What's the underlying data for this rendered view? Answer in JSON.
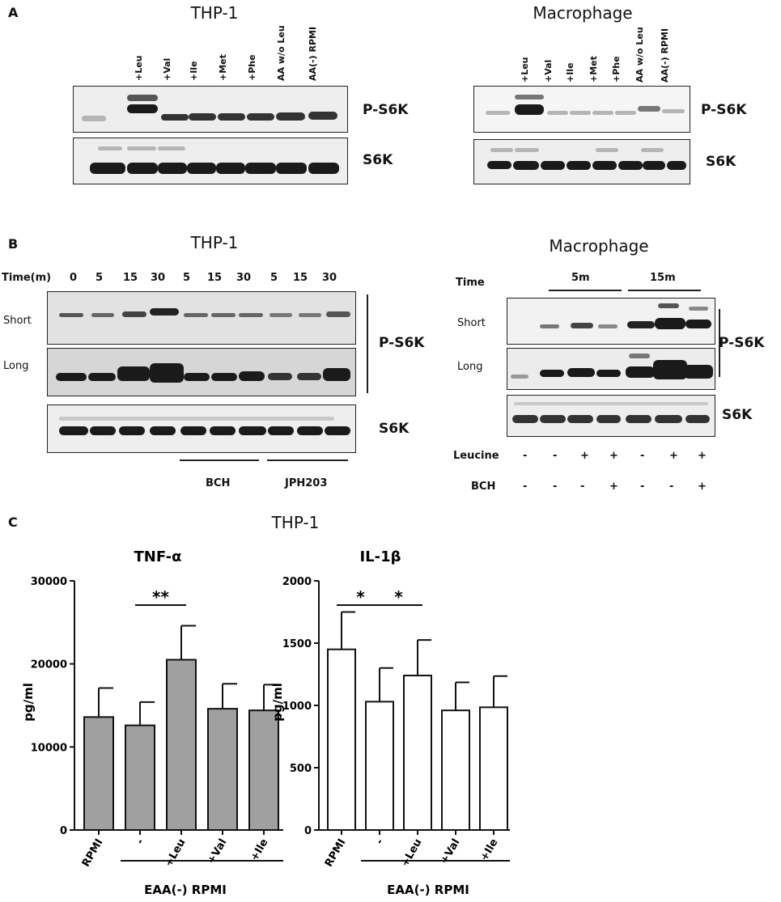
{
  "panelA": {
    "letter": "A",
    "left": {
      "title": "THP-1",
      "lanes": [
        "+Leu",
        "+Val",
        "+Ile",
        "+Met",
        "+Phe",
        "AA w/o Leu",
        "AA(-) RPMI"
      ],
      "blots": [
        "P-S6K",
        "S6K"
      ]
    },
    "right": {
      "title": "Macrophage",
      "lanes": [
        "+Leu",
        "+Val",
        "+Ile",
        "+Met",
        "+Phe",
        "AA w/o Leu",
        "AA(-) RPMI"
      ],
      "blots": [
        "P-S6K",
        "S6K"
      ]
    }
  },
  "panelB": {
    "letter": "B",
    "left": {
      "title": "THP-1",
      "time_label": "Time(m)",
      "times": [
        "0",
        "5",
        "15",
        "30",
        "5",
        "15",
        "30",
        "5",
        "15",
        "30"
      ],
      "row_labels": [
        "Short",
        "Long"
      ],
      "blots": [
        "P-S6K",
        "S6K"
      ],
      "groups": [
        "BCH",
        "JPH203"
      ]
    },
    "right": {
      "title": "Macrophage",
      "time_label": "Time",
      "time_groups": [
        "5m",
        "15m"
      ],
      "row_labels": [
        "Short",
        "Long"
      ],
      "blots": [
        "P-S6K",
        "S6K"
      ],
      "treatments": [
        {
          "name": "Leucine",
          "signs": [
            "-",
            "-",
            "+",
            "+",
            "-",
            "+",
            "+"
          ]
        },
        {
          "name": "BCH",
          "signs": [
            "-",
            "-",
            "-",
            "+",
            "-",
            "-",
            "+"
          ]
        }
      ]
    }
  },
  "panelC": {
    "letter": "C",
    "title": "THP-1",
    "group_label": "EAA(-) RPMI"
  },
  "chart_data": [
    {
      "type": "bar",
      "title": "TNF-α",
      "ylabel": "pg/ml",
      "categories": [
        "RPMI",
        "-",
        "+Leu",
        "+Val",
        "+Ile"
      ],
      "values": [
        13600,
        12600,
        20500,
        14600,
        14400
      ],
      "errors": [
        3500,
        2800,
        4100,
        3000,
        3100
      ],
      "ylim": [
        0,
        30000
      ],
      "yticks": [
        0,
        10000,
        20000,
        30000
      ],
      "bar_color": "#a0a0a0",
      "significance": [
        {
          "from": 1,
          "to": 2,
          "label": "**"
        }
      ]
    },
    {
      "type": "bar",
      "title": "IL-1β",
      "ylabel": "pg/ml",
      "categories": [
        "RPMI",
        "-",
        "+Leu",
        "+Val",
        "+Ile"
      ],
      "values": [
        1450,
        1030,
        1240,
        960,
        985
      ],
      "errors": [
        300,
        270,
        285,
        225,
        250
      ],
      "ylim": [
        0,
        2000
      ],
      "yticks": [
        0,
        500,
        1000,
        1500,
        2000
      ],
      "bar_color": "#ffffff",
      "significance": [
        {
          "from": 0,
          "to": 1,
          "label": "*"
        },
        {
          "from": 1,
          "to": 2,
          "label": "*"
        }
      ]
    }
  ]
}
